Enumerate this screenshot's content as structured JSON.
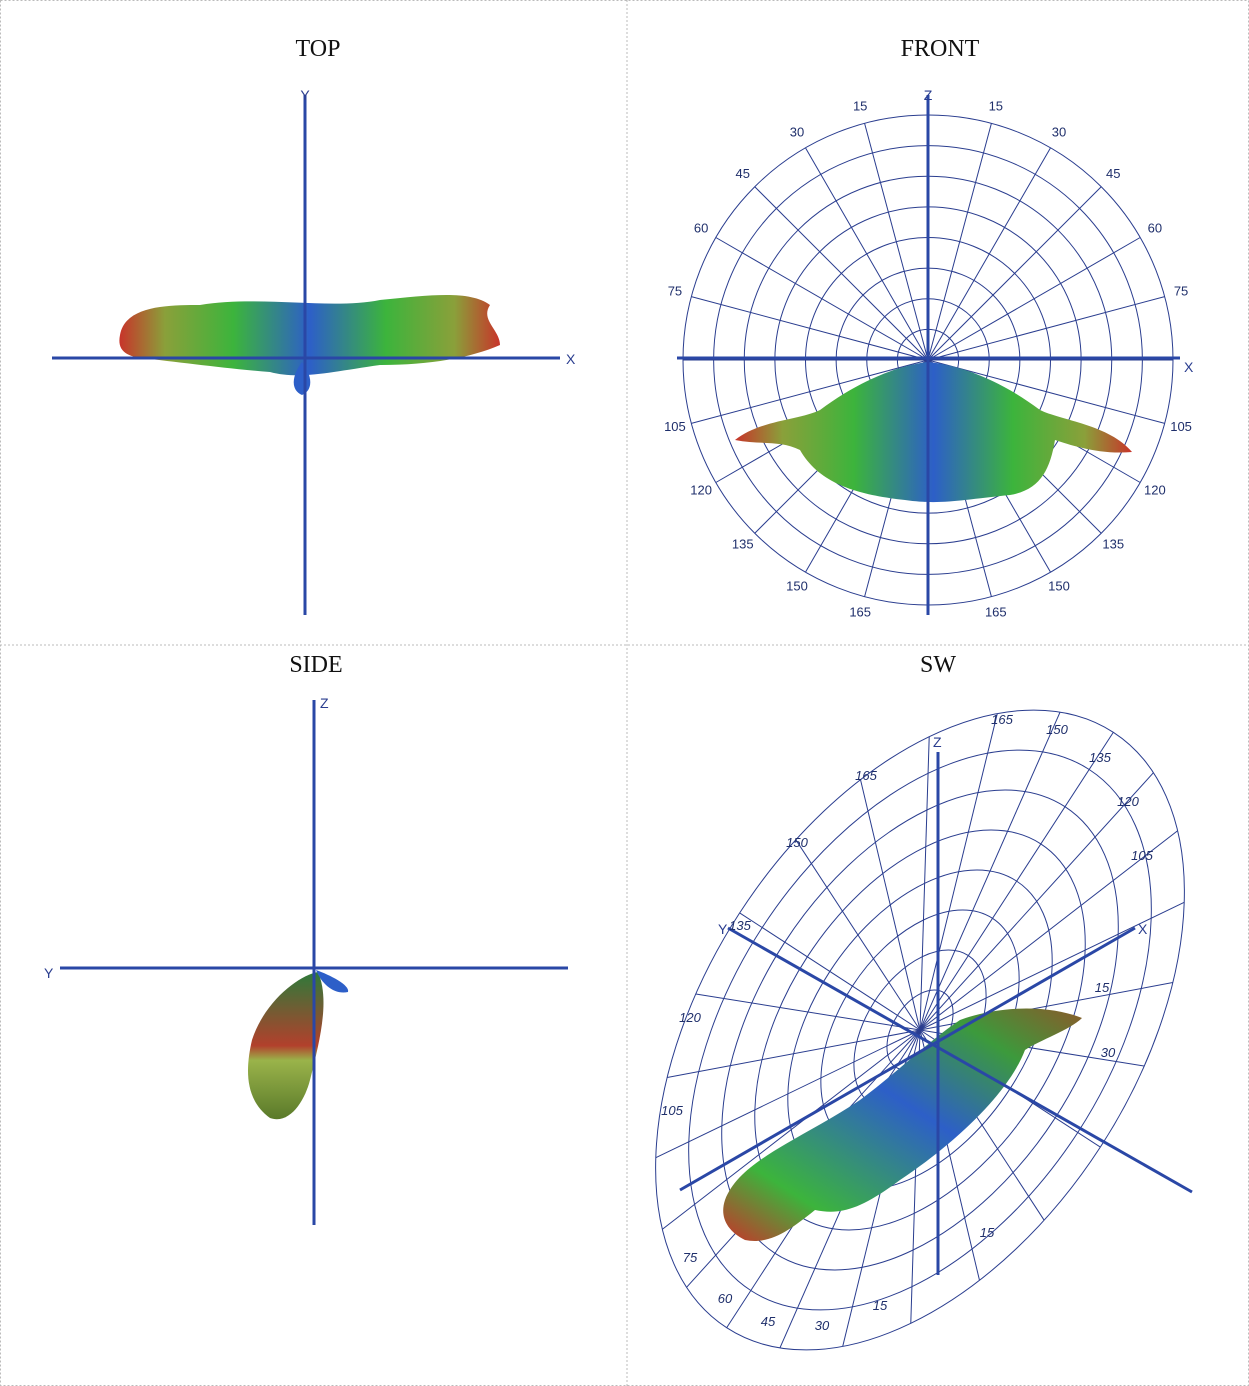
{
  "panels": [
    {
      "title": "TOP",
      "axes": [
        "Y",
        "X"
      ]
    },
    {
      "title": "FRONT",
      "axes": [
        "Z",
        "X"
      ],
      "angle_labels": [
        165,
        150,
        135,
        120,
        105,
        75,
        60,
        45,
        30,
        15
      ]
    },
    {
      "title": "SIDE",
      "axes": [
        "Z",
        "Y"
      ]
    },
    {
      "title": "SW",
      "axes": [
        "Z",
        "X",
        "Y"
      ],
      "angle_labels": [
        165,
        150,
        135,
        120,
        105,
        75,
        60,
        45,
        30,
        15,
        165,
        150,
        135,
        120,
        105,
        15,
        30,
        15
      ]
    }
  ]
}
